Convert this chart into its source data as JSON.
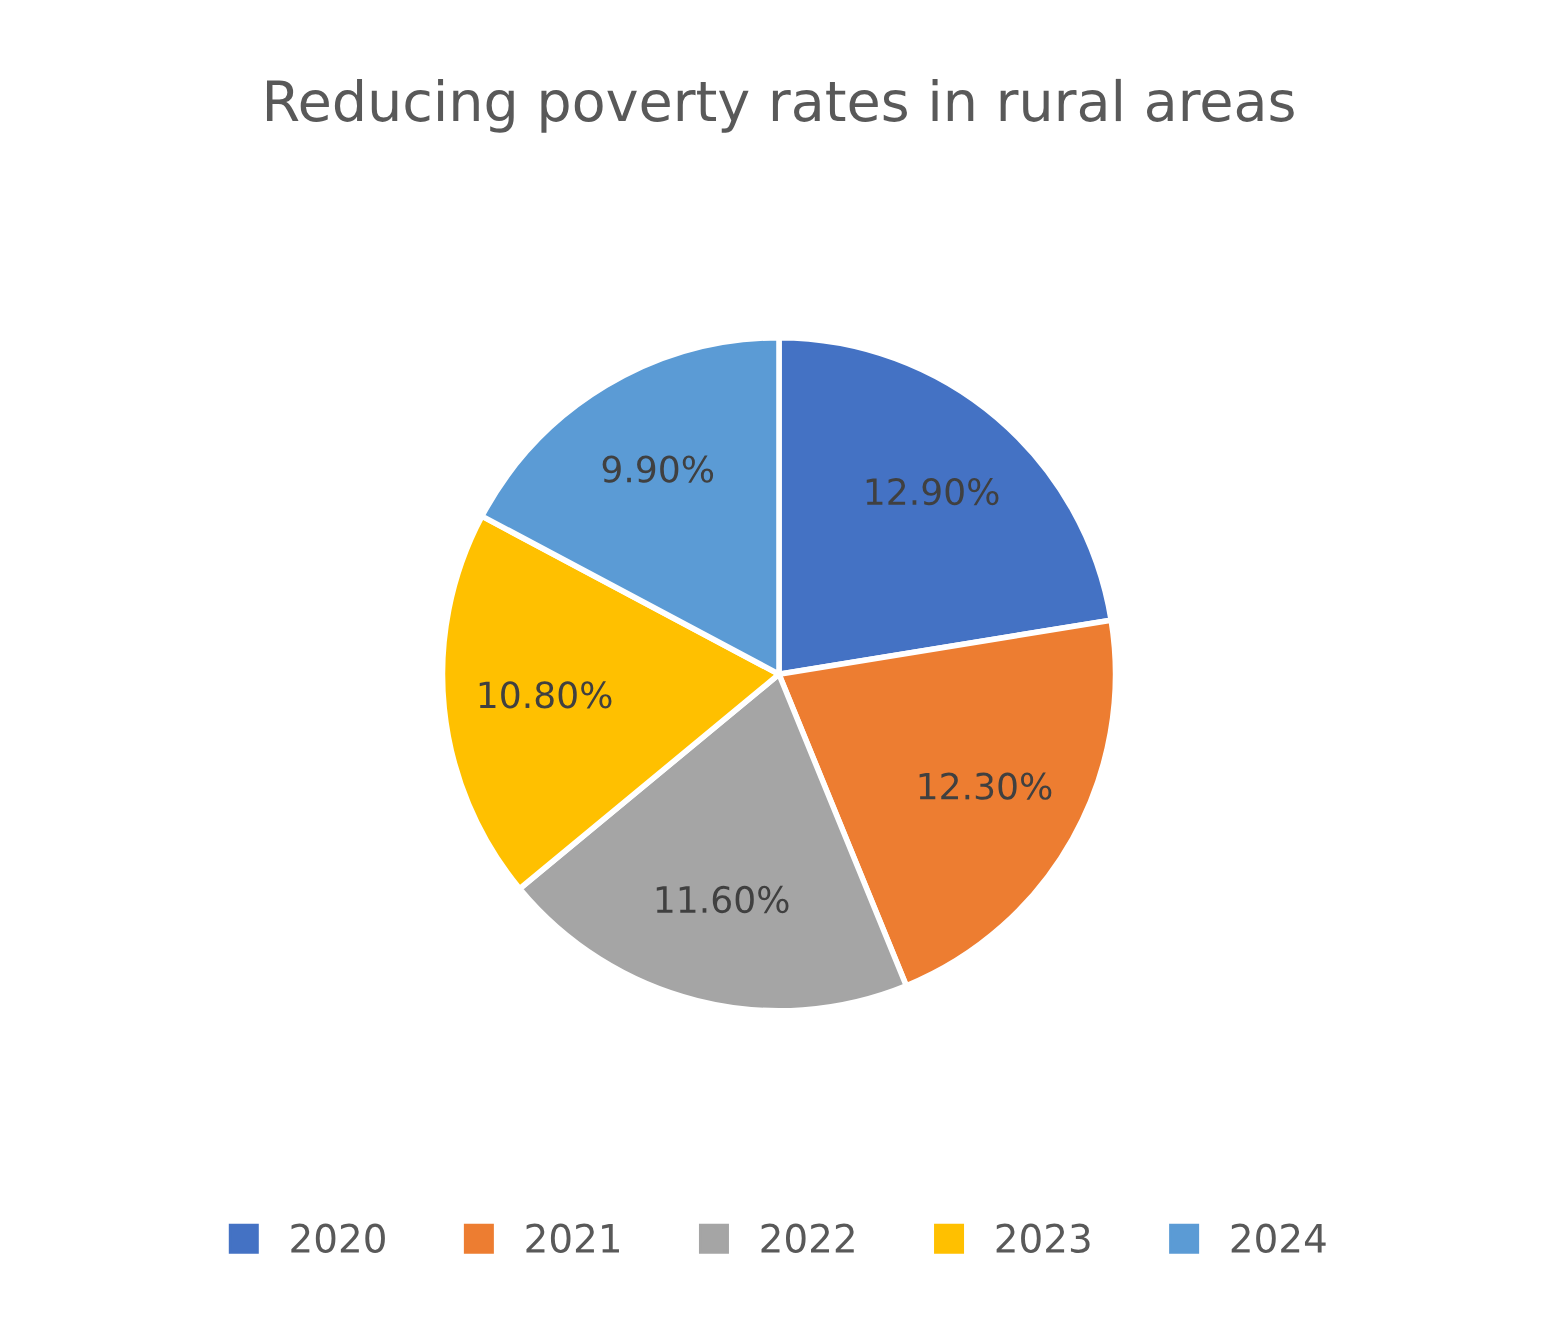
{
  "chart_data": {
    "type": "pie",
    "title": "Reducing poverty rates in rural areas",
    "categories": [
      "2020",
      "2021",
      "2022",
      "2023",
      "2024"
    ],
    "values": [
      12.9,
      12.3,
      11.6,
      10.8,
      9.9
    ],
    "value_labels": [
      "12.90%",
      "12.30%",
      "11.60%",
      "10.80%",
      "9.90%"
    ],
    "colors": [
      "#4472c4",
      "#ed7d31",
      "#a5a5a5",
      "#ffc000",
      "#5b9bd5"
    ],
    "legend": "bottom"
  }
}
